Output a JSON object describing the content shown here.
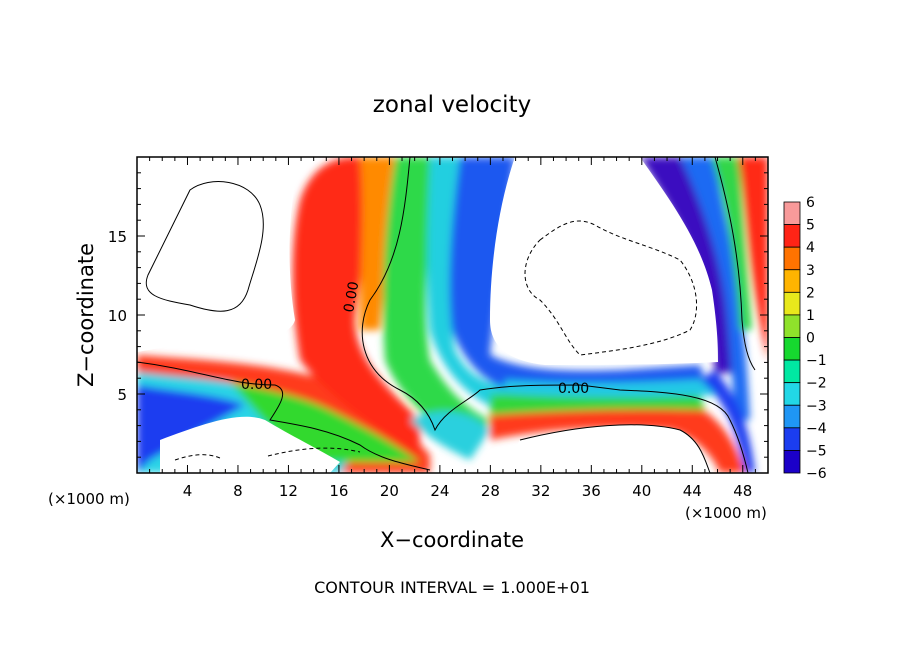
{
  "chart_data": {
    "type": "heatmap",
    "title": "zonal velocity",
    "xlabel": "X−coordinate",
    "ylabel": "Z−coordinate",
    "x_unit_label_left": "(×1000 m)",
    "x_unit_label_right": "(×1000 m)",
    "footer": "CONTOUR INTERVAL = 1.000E+01",
    "xlim": [
      0,
      50
    ],
    "ylim": [
      0,
      20
    ],
    "x_ticks": [
      4,
      8,
      12,
      16,
      20,
      24,
      28,
      32,
      36,
      40,
      44,
      48
    ],
    "x_tick_labels": [
      "4",
      "8",
      "12",
      "16",
      "20",
      "24",
      "28",
      "32",
      "36",
      "40",
      "44",
      "48"
    ],
    "y_ticks": [
      5,
      10,
      15
    ],
    "y_tick_labels": [
      "5",
      "10",
      "15"
    ],
    "colorbar": {
      "levels": [
        -6,
        -5,
        -4,
        -3,
        -2,
        -1,
        0,
        1,
        2,
        3,
        4,
        5,
        6
      ],
      "labels": [
        "−6",
        "−5",
        "−4",
        "−3",
        "−2",
        "−1",
        "0",
        "1",
        "2",
        "3",
        "4",
        "5",
        "6"
      ],
      "colors": [
        "#7a009b",
        "#1b00c8",
        "#1b3df0",
        "#1f96f5",
        "#22d7e6",
        "#00e8a2",
        "#16d92f",
        "#8fe22b",
        "#e8e81c",
        "#ffb400",
        "#ff7300",
        "#ff2416",
        "#f89a9a"
      ]
    },
    "contour_labels": [
      {
        "text": "0.00",
        "x": 17.5,
        "y": 10.0
      },
      {
        "text": "0.00",
        "x": 7.5,
        "y": 5.5
      },
      {
        "text": "0.00",
        "x": 35.5,
        "y": 5.5
      }
    ]
  }
}
